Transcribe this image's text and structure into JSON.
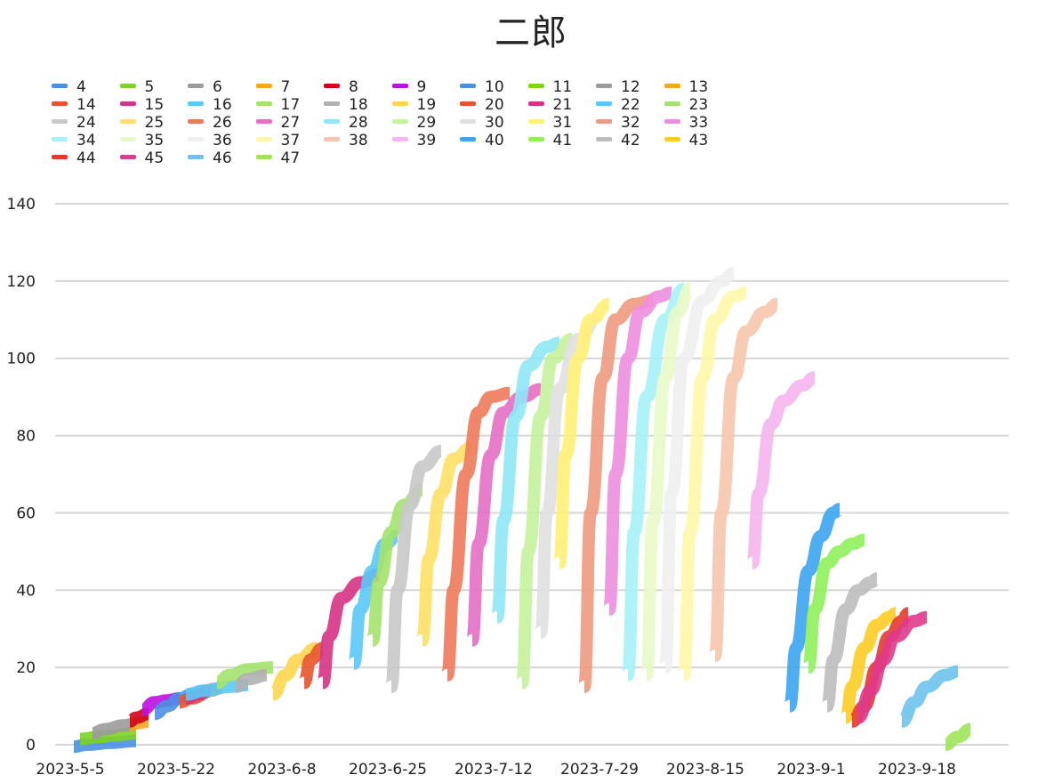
{
  "chart_data": {
    "type": "line",
    "title": "二郎",
    "xlabel": "",
    "ylabel": "",
    "ylim": [
      0,
      140
    ],
    "yticks": [
      0,
      20,
      40,
      60,
      80,
      100,
      120,
      140
    ],
    "xlim": [
      "2023-05-05",
      "2023-09-24"
    ],
    "xticks": [
      {
        "date": "2023-05-05",
        "label": "2023-5-5"
      },
      {
        "date": "2023-05-22",
        "label": "2023-5-22"
      },
      {
        "date": "2023-06-08",
        "label": "2023-6-8"
      },
      {
        "date": "2023-06-25",
        "label": "2023-6-25"
      },
      {
        "date": "2023-07-12",
        "label": "2023-7-12"
      },
      {
        "date": "2023-07-29",
        "label": "2023-7-29"
      },
      {
        "date": "2023-08-15",
        "label": "2023-8-15"
      },
      {
        "date": "2023-09-01",
        "label": "2023-9-1"
      },
      {
        "date": "2023-09-18",
        "label": "2023-9-18"
      }
    ],
    "grid": true,
    "legend_position": "top-left",
    "series": [
      {
        "name": "4",
        "color": "#4a90e2",
        "points": [
          [
            "2023-05-08",
            -0.5
          ],
          [
            "2023-05-10",
            0
          ],
          [
            "2023-05-14",
            0.5
          ],
          [
            "2023-05-18",
            1
          ]
        ]
      },
      {
        "name": "5",
        "color": "#7ed321",
        "points": [
          [
            "2023-05-09",
            1.5
          ],
          [
            "2023-05-12",
            2
          ],
          [
            "2023-05-15",
            2.5
          ],
          [
            "2023-05-18",
            3
          ]
        ]
      },
      {
        "name": "6",
        "color": "#9b9b9b",
        "points": [
          [
            "2023-05-11",
            3
          ],
          [
            "2023-05-13",
            4
          ],
          [
            "2023-05-16",
            5
          ],
          [
            "2023-05-18",
            5.5
          ]
        ]
      },
      {
        "name": "7",
        "color": "#f5a623",
        "points": [
          [
            "2023-05-17",
            5
          ],
          [
            "2023-05-18",
            5.5
          ],
          [
            "2023-05-20",
            6
          ]
        ]
      },
      {
        "name": "8",
        "color": "#d0021b",
        "points": [
          [
            "2023-05-17",
            6
          ],
          [
            "2023-05-18",
            7
          ],
          [
            "2023-05-20",
            8
          ]
        ]
      },
      {
        "name": "9",
        "color": "#bd10e0",
        "points": [
          [
            "2023-05-19",
            9
          ],
          [
            "2023-05-21",
            11
          ],
          [
            "2023-05-23",
            11.5
          ],
          [
            "2023-05-25",
            12
          ]
        ]
      },
      {
        "name": "10",
        "color": "#4a90e2",
        "points": [
          [
            "2023-05-21",
            8
          ],
          [
            "2023-05-23",
            10
          ],
          [
            "2023-05-25",
            12
          ],
          [
            "2023-05-27",
            13
          ]
        ]
      },
      {
        "name": "11",
        "color": "#7ed321",
        "points": [
          [
            "2023-05-26",
            12
          ],
          [
            "2023-05-28",
            13
          ],
          [
            "2023-05-30",
            14
          ]
        ]
      },
      {
        "name": "12",
        "color": "#9b9b9b",
        "points": [
          [
            "2023-05-27",
            13
          ],
          [
            "2023-05-29",
            14
          ],
          [
            "2023-05-31",
            14.5
          ]
        ]
      },
      {
        "name": "13",
        "color": "#f5a623",
        "points": [
          [
            "2023-05-28",
            13
          ],
          [
            "2023-05-30",
            14
          ],
          [
            "2023-06-01",
            15
          ]
        ]
      },
      {
        "name": "14",
        "color": "#e8542a",
        "points": [
          [
            "2023-05-25",
            11
          ],
          [
            "2023-05-27",
            12
          ],
          [
            "2023-05-29",
            13
          ]
        ]
      },
      {
        "name": "15",
        "color": "#d63384",
        "points": [
          [
            "2023-05-26",
            12
          ],
          [
            "2023-05-28",
            13
          ],
          [
            "2023-05-30",
            14
          ]
        ]
      },
      {
        "name": "16",
        "color": "#5ac8fa",
        "points": [
          [
            "2023-05-26",
            13
          ],
          [
            "2023-05-29",
            14
          ],
          [
            "2023-06-02",
            15
          ],
          [
            "2023-06-05",
            15.5
          ]
        ]
      },
      {
        "name": "17",
        "color": "#a3e36b",
        "points": [
          [
            "2023-05-31",
            16
          ],
          [
            "2023-06-02",
            18
          ],
          [
            "2023-06-05",
            19.5
          ],
          [
            "2023-06-09",
            20
          ]
        ]
      },
      {
        "name": "18",
        "color": "#b0b0b0",
        "points": [
          [
            "2023-06-03",
            15
          ],
          [
            "2023-06-05",
            17
          ],
          [
            "2023-06-08",
            18
          ]
        ]
      },
      {
        "name": "19",
        "color": "#ffd54f",
        "points": [
          [
            "2023-06-09",
            13
          ],
          [
            "2023-06-11",
            18
          ],
          [
            "2023-06-13",
            22
          ],
          [
            "2023-06-16",
            25
          ]
        ]
      },
      {
        "name": "20",
        "color": "#e8542a",
        "points": [
          [
            "2023-06-14",
            16
          ],
          [
            "2023-06-15",
            22
          ],
          [
            "2023-06-17",
            25
          ]
        ]
      },
      {
        "name": "21",
        "color": "#d63384",
        "points": [
          [
            "2023-06-17",
            16
          ],
          [
            "2023-06-18",
            28
          ],
          [
            "2023-06-20",
            38
          ],
          [
            "2023-06-23",
            42
          ],
          [
            "2023-06-26",
            44
          ]
        ]
      },
      {
        "name": "22",
        "color": "#5ac8fa",
        "points": [
          [
            "2023-06-22",
            21
          ],
          [
            "2023-06-23",
            35
          ],
          [
            "2023-06-25",
            45
          ],
          [
            "2023-06-27",
            52
          ],
          [
            "2023-06-29",
            54
          ]
        ]
      },
      {
        "name": "23",
        "color": "#a3e36b",
        "points": [
          [
            "2023-06-25",
            27
          ],
          [
            "2023-06-26",
            42
          ],
          [
            "2023-06-28",
            55
          ],
          [
            "2023-06-30",
            62
          ],
          [
            "2023-07-03",
            66
          ]
        ]
      },
      {
        "name": "24",
        "color": "#c8c8c8",
        "points": [
          [
            "2023-06-28",
            15
          ],
          [
            "2023-06-29",
            40
          ],
          [
            "2023-07-01",
            62
          ],
          [
            "2023-07-03",
            72
          ],
          [
            "2023-07-06",
            76
          ]
        ]
      },
      {
        "name": "25",
        "color": "#ffe066",
        "points": [
          [
            "2023-07-03",
            27
          ],
          [
            "2023-07-04",
            48
          ],
          [
            "2023-07-06",
            65
          ],
          [
            "2023-07-08",
            74
          ],
          [
            "2023-07-11",
            77
          ]
        ]
      },
      {
        "name": "26",
        "color": "#ee7a5a",
        "points": [
          [
            "2023-07-07",
            18
          ],
          [
            "2023-07-08",
            40
          ],
          [
            "2023-07-10",
            70
          ],
          [
            "2023-07-12",
            86
          ],
          [
            "2023-07-14",
            90
          ],
          [
            "2023-07-17",
            91
          ]
        ]
      },
      {
        "name": "27",
        "color": "#e46fc4",
        "points": [
          [
            "2023-07-11",
            27
          ],
          [
            "2023-07-12",
            52
          ],
          [
            "2023-07-14",
            75
          ],
          [
            "2023-07-16",
            86
          ],
          [
            "2023-07-19",
            90
          ],
          [
            "2023-07-22",
            92
          ]
        ]
      },
      {
        "name": "28",
        "color": "#8ee7f5",
        "points": [
          [
            "2023-07-15",
            33
          ],
          [
            "2023-07-16",
            58
          ],
          [
            "2023-07-18",
            85
          ],
          [
            "2023-07-20",
            98
          ],
          [
            "2023-07-23",
            103
          ],
          [
            "2023-07-25",
            104
          ]
        ]
      },
      {
        "name": "29",
        "color": "#c5f29b",
        "points": [
          [
            "2023-07-19",
            16
          ],
          [
            "2023-07-20",
            50
          ],
          [
            "2023-07-22",
            85
          ],
          [
            "2023-07-24",
            100
          ],
          [
            "2023-07-27",
            105
          ]
        ]
      },
      {
        "name": "30",
        "color": "#e0e0e0",
        "points": [
          [
            "2023-07-22",
            29
          ],
          [
            "2023-07-23",
            60
          ],
          [
            "2023-07-25",
            92
          ],
          [
            "2023-07-28",
            105
          ],
          [
            "2023-07-31",
            110
          ]
        ]
      },
      {
        "name": "31",
        "color": "#fff176",
        "points": [
          [
            "2023-07-25",
            47
          ],
          [
            "2023-07-26",
            75
          ],
          [
            "2023-07-28",
            100
          ],
          [
            "2023-07-30",
            110
          ],
          [
            "2023-08-02",
            114
          ]
        ]
      },
      {
        "name": "32",
        "color": "#ee9a80",
        "points": [
          [
            "2023-07-29",
            15
          ],
          [
            "2023-07-30",
            60
          ],
          [
            "2023-08-01",
            95
          ],
          [
            "2023-08-03",
            110
          ],
          [
            "2023-08-06",
            114
          ],
          [
            "2023-08-09",
            115
          ]
        ]
      },
      {
        "name": "33",
        "color": "#ee8ee0",
        "points": [
          [
            "2023-08-02",
            35
          ],
          [
            "2023-08-03",
            70
          ],
          [
            "2023-08-05",
            100
          ],
          [
            "2023-08-07",
            112
          ],
          [
            "2023-08-10",
            116
          ],
          [
            "2023-08-12",
            117
          ]
        ]
      },
      {
        "name": "34",
        "color": "#a5f2f7",
        "points": [
          [
            "2023-08-05",
            18
          ],
          [
            "2023-08-06",
            55
          ],
          [
            "2023-08-08",
            90
          ],
          [
            "2023-08-11",
            110
          ],
          [
            "2023-08-14",
            118
          ]
        ]
      },
      {
        "name": "35",
        "color": "#e8f9c8",
        "points": [
          [
            "2023-08-08",
            18
          ],
          [
            "2023-08-09",
            58
          ],
          [
            "2023-08-11",
            95
          ],
          [
            "2023-08-13",
            112
          ],
          [
            "2023-08-15",
            118
          ]
        ]
      },
      {
        "name": "36",
        "color": "#f0f0f0",
        "points": [
          [
            "2023-08-11",
            20
          ],
          [
            "2023-08-12",
            65
          ],
          [
            "2023-08-14",
            100
          ],
          [
            "2023-08-17",
            115
          ],
          [
            "2023-08-20",
            120
          ],
          [
            "2023-08-22",
            122
          ]
        ]
      },
      {
        "name": "37",
        "color": "#fff7a8",
        "points": [
          [
            "2023-08-14",
            18
          ],
          [
            "2023-08-15",
            55
          ],
          [
            "2023-08-17",
            95
          ],
          [
            "2023-08-19",
            110
          ],
          [
            "2023-08-22",
            116
          ],
          [
            "2023-08-24",
            117
          ]
        ]
      },
      {
        "name": "38",
        "color": "#f7c5ad",
        "points": [
          [
            "2023-08-19",
            23
          ],
          [
            "2023-08-20",
            60
          ],
          [
            "2023-08-22",
            95
          ],
          [
            "2023-08-24",
            107
          ],
          [
            "2023-08-27",
            112
          ],
          [
            "2023-08-29",
            114
          ]
        ]
      },
      {
        "name": "39",
        "color": "#f5b5ee",
        "points": [
          [
            "2023-08-25",
            47
          ],
          [
            "2023-08-26",
            65
          ],
          [
            "2023-08-28",
            83
          ],
          [
            "2023-08-30",
            89
          ],
          [
            "2023-09-02",
            93
          ],
          [
            "2023-09-04",
            95
          ]
        ]
      },
      {
        "name": "40",
        "color": "#3ba5f0",
        "points": [
          [
            "2023-08-31",
            10
          ],
          [
            "2023-09-01",
            25
          ],
          [
            "2023-09-03",
            45
          ],
          [
            "2023-09-05",
            54
          ],
          [
            "2023-09-07",
            60
          ],
          [
            "2023-09-08",
            61
          ]
        ]
      },
      {
        "name": "41",
        "color": "#8fef5a",
        "points": [
          [
            "2023-09-03",
            20
          ],
          [
            "2023-09-04",
            35
          ],
          [
            "2023-09-06",
            47
          ],
          [
            "2023-09-08",
            50
          ],
          [
            "2023-09-10",
            52
          ],
          [
            "2023-09-12",
            53
          ]
        ]
      },
      {
        "name": "42",
        "color": "#bdbdbd",
        "points": [
          [
            "2023-09-06",
            10
          ],
          [
            "2023-09-07",
            22
          ],
          [
            "2023-09-09",
            35
          ],
          [
            "2023-09-11",
            40
          ],
          [
            "2023-09-13",
            42
          ],
          [
            "2023-09-14",
            43
          ]
        ]
      },
      {
        "name": "43",
        "color": "#ffcc22",
        "points": [
          [
            "2023-09-09",
            7
          ],
          [
            "2023-09-10",
            15
          ],
          [
            "2023-09-12",
            25
          ],
          [
            "2023-09-14",
            31
          ],
          [
            "2023-09-16",
            33
          ],
          [
            "2023-09-17",
            34
          ]
        ]
      },
      {
        "name": "44",
        "color": "#e53a2a",
        "points": [
          [
            "2023-09-10",
            6
          ],
          [
            "2023-09-12",
            10
          ],
          [
            "2023-09-14",
            20
          ],
          [
            "2023-09-16",
            28
          ],
          [
            "2023-09-18",
            32
          ],
          [
            "2023-09-19",
            34
          ]
        ]
      },
      {
        "name": "45",
        "color": "#e03a8c",
        "points": [
          [
            "2023-09-11",
            7
          ],
          [
            "2023-09-13",
            14
          ],
          [
            "2023-09-15",
            22
          ],
          [
            "2023-09-17",
            28
          ],
          [
            "2023-09-20",
            32
          ],
          [
            "2023-09-22",
            33
          ]
        ]
      },
      {
        "name": "46",
        "color": "#6ec3ee",
        "points": [
          [
            "2023-09-18",
            6
          ],
          [
            "2023-09-20",
            11
          ],
          [
            "2023-09-22",
            15
          ],
          [
            "2023-09-25",
            18
          ],
          [
            "2023-09-27",
            19
          ]
        ]
      },
      {
        "name": "47",
        "color": "#9ee45a",
        "points": [
          [
            "2023-09-25",
            0
          ],
          [
            "2023-09-27",
            2
          ],
          [
            "2023-09-29",
            4
          ]
        ]
      }
    ]
  }
}
